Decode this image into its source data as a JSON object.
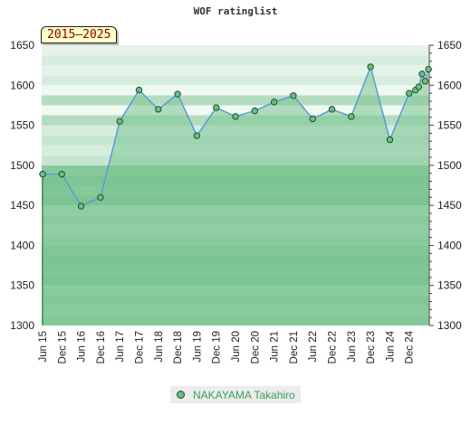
{
  "chart_data": {
    "type": "line",
    "title": "WOF ratinglist",
    "badge": "2015–2025",
    "ylim": [
      1300,
      1650
    ],
    "yticks": [
      1300,
      1350,
      1400,
      1450,
      1500,
      1550,
      1600,
      1650
    ],
    "categories": [
      "Jun 15",
      "Dec 15",
      "Jun 16",
      "Dec 16",
      "Jun 17",
      "Dec 17",
      "Jun 18",
      "Dec 18",
      "Jun 19",
      "Dec 19",
      "Jun 20",
      "Dec 20",
      "Jun 21",
      "Dec 21",
      "Jun 22",
      "Dec 22",
      "Jun 23",
      "Dec 23",
      "Jun 24",
      "Dec 24"
    ],
    "series": [
      {
        "name": "NAKAYAMA Takahiro",
        "x": [
          0,
          1,
          2,
          3,
          4,
          5,
          6,
          7,
          8,
          9,
          10,
          11,
          12,
          13,
          14,
          15,
          16,
          17,
          18,
          19,
          19.33,
          19.5,
          19.67,
          19.83,
          20
        ],
        "values": [
          1489,
          1489,
          1449,
          1460,
          1555,
          1594,
          1570,
          1589,
          1537,
          1572,
          1561,
          1568,
          1579,
          1587,
          1558,
          1570,
          1561,
          1623,
          1532,
          1590,
          1594,
          1598,
          1614,
          1605,
          1620
        ]
      }
    ],
    "legend_position": "bottom-center",
    "grid": "horizontal bands",
    "colors": {
      "line": "#5b9bd5",
      "fill": "#7cc494",
      "marker": "#6cbf84",
      "marker_edge": "#1f4d2e"
    }
  }
}
